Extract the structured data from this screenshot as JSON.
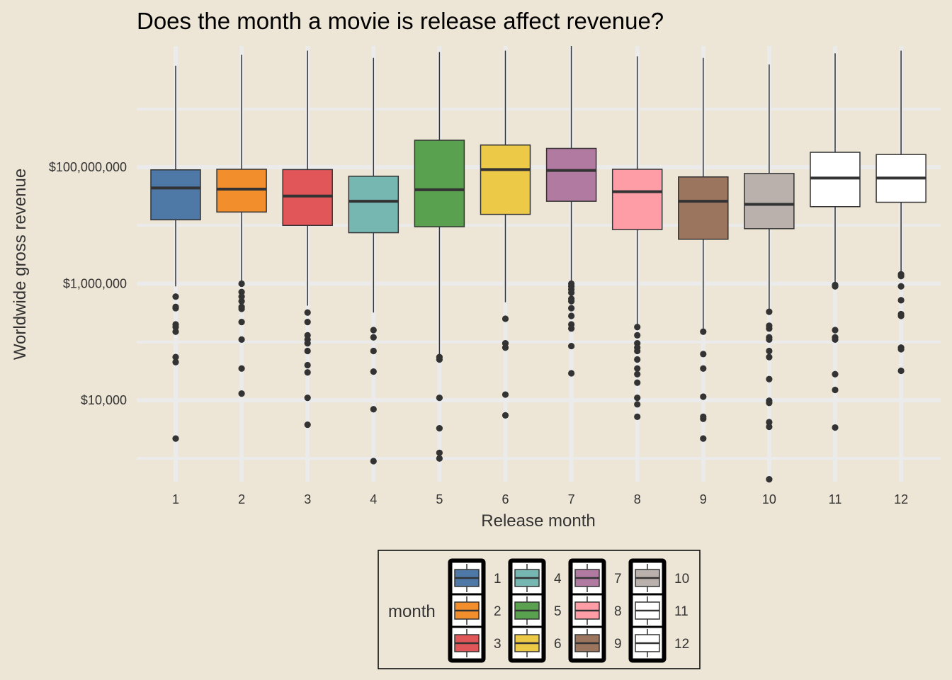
{
  "chart_data": {
    "type": "boxplot",
    "title": "Does the month a movie is release affect revenue?",
    "xlabel": "Release month",
    "ylabel": "Worldwide gross revenue",
    "y_scale": "log10",
    "ylim": [
      400,
      12000000000
    ],
    "y_ticks": [
      10000,
      1000000,
      100000000
    ],
    "y_tick_labels": [
      "$10,000",
      "$1,000,000",
      "$100,000,000"
    ],
    "grid": true,
    "legend_position": "bottom",
    "legend_title": "month",
    "categories": [
      "1",
      "2",
      "3",
      "4",
      "5",
      "6",
      "7",
      "8",
      "9",
      "10",
      "11",
      "12"
    ],
    "boxes": [
      {
        "month": "1",
        "color": "#4e79a7",
        "lower_whisker": 900000,
        "q1": 12500000,
        "median": 44000000,
        "q3": 90000000,
        "upper_whisker": 5500000000,
        "outliers": [
          600000,
          400000,
          380000,
          200000,
          180000,
          150000,
          55000,
          45000,
          2200
        ]
      },
      {
        "month": "2",
        "color": "#f28e2b",
        "lower_whisker": 1000000,
        "q1": 17000000,
        "median": 42000000,
        "q3": 92000000,
        "upper_whisker": 8500000000,
        "outliers": [
          1000000,
          720000,
          600000,
          500000,
          400000,
          370000,
          220000,
          110000,
          35000,
          13000
        ]
      },
      {
        "month": "3",
        "color": "#e15759",
        "lower_whisker": 420000,
        "q1": 10000000,
        "median": 32000000,
        "q3": 91000000,
        "upper_whisker": 10000000000,
        "outliers": [
          320000,
          220000,
          130000,
          110000,
          95000,
          70000,
          40000,
          30000,
          11000,
          3800
        ]
      },
      {
        "month": "4",
        "color": "#76b7b2",
        "lower_whisker": 320000,
        "q1": 7500000,
        "median": 26000000,
        "q3": 70000000,
        "upper_whisker": 7500000000,
        "outliers": [
          160000,
          120000,
          70000,
          31000,
          7000,
          900
        ]
      },
      {
        "month": "5",
        "color": "#59a14f",
        "lower_whisker": 60000,
        "q1": 9500000,
        "median": 41000000,
        "q3": 290000000,
        "upper_whisker": 9500000000,
        "outliers": [
          55000,
          50000,
          11000,
          3300,
          1250,
          1000
        ]
      },
      {
        "month": "6",
        "color": "#edc948",
        "lower_whisker": 480000,
        "q1": 15500000,
        "median": 91000000,
        "q3": 240000000,
        "upper_whisker": 10000000000,
        "outliers": [
          250000,
          95000,
          80000,
          12500,
          5500
        ]
      },
      {
        "month": "7",
        "color": "#b07aa1",
        "lower_whisker": 1100000,
        "q1": 26000000,
        "median": 88000000,
        "q3": 210000000,
        "upper_whisker": 12000000000,
        "outliers": [
          1000000,
          900000,
          800000,
          700000,
          550000,
          500000,
          380000,
          280000,
          200000,
          170000,
          85000,
          29000
        ]
      },
      {
        "month": "8",
        "color": "#ff9da7",
        "lower_whisker": 190000,
        "q1": 8500000,
        "median": 38000000,
        "q3": 92000000,
        "upper_whisker": 8000000000,
        "outliers": [
          180000,
          130000,
          95000,
          80000,
          70000,
          50000,
          35000,
          28000,
          20000,
          11000,
          8500,
          5200
        ]
      },
      {
        "month": "9",
        "color": "#9c755f",
        "lower_whisker": 150000,
        "q1": 5800000,
        "median": 26000000,
        "q3": 68000000,
        "upper_whisker": 7500000000,
        "outliers": [
          150000,
          62000,
          35000,
          11500,
          5200,
          4800,
          2200
        ]
      },
      {
        "month": "10",
        "color": "#bab0ac",
        "lower_whisker": 330000,
        "q1": 8800000,
        "median": 23000000,
        "q3": 78000000,
        "upper_whisker": 5800000000,
        "outliers": [
          330000,
          190000,
          170000,
          120000,
          110000,
          70000,
          55000,
          23000,
          9800,
          9000,
          4200,
          3500,
          440
        ]
      },
      {
        "month": "11",
        "color": "#ffffff",
        "lower_whisker": 1000000,
        "q1": 21000000,
        "median": 65000000,
        "q3": 180000000,
        "upper_whisker": 9000000000,
        "outliers": [
          950000,
          900000,
          160000,
          120000,
          110000,
          28000,
          15000,
          3400
        ]
      },
      {
        "month": "12",
        "color": "#ffffff",
        "lower_whisker": 1500000,
        "q1": 25000000,
        "median": 65000000,
        "q3": 165000000,
        "upper_whisker": 10000000000,
        "outliers": [
          1450000,
          1350000,
          900000,
          520000,
          300000,
          280000,
          80000,
          75000,
          32000
        ]
      }
    ]
  }
}
